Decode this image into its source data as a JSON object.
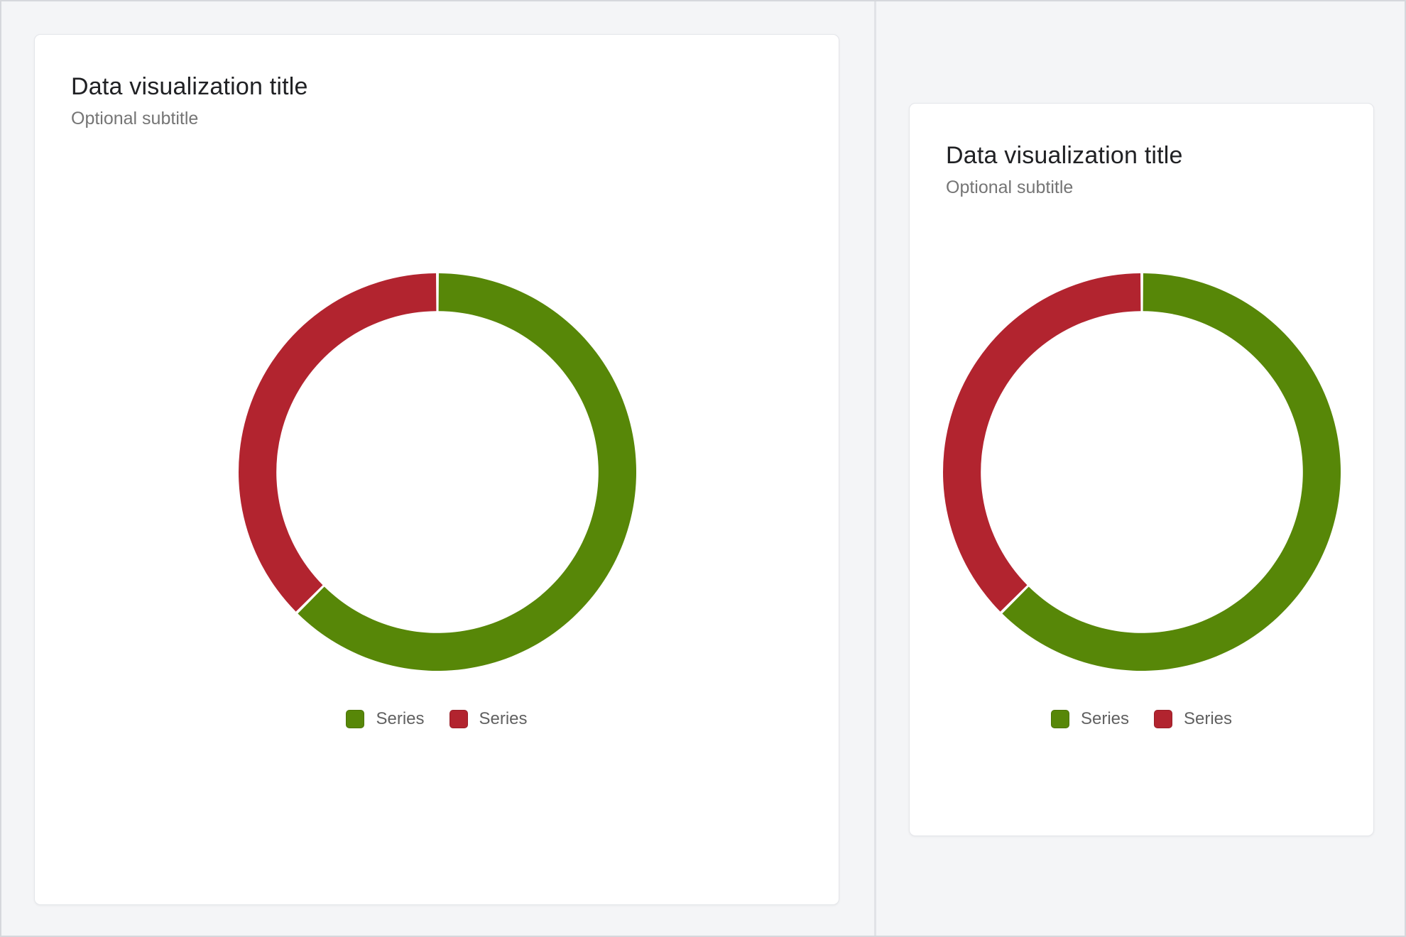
{
  "theme": {
    "background": "#f4f5f7",
    "card_background": "#ffffff",
    "card_border": "#e4e6ea",
    "divider": "#e1e3e7",
    "outer_border": "#d6d8dc",
    "title_color": "#202124",
    "subtitle_color": "#757575",
    "legend_text_color": "#616161",
    "series_green": "#578708",
    "series_red": "#b2242f"
  },
  "cards": [
    {
      "title": "Data visualization title",
      "subtitle": "Optional subtitle"
    },
    {
      "title": "Data visualization title",
      "subtitle": "Optional subtitle"
    }
  ],
  "chart_data": [
    {
      "type": "pie",
      "variant": "donut",
      "title": "Data visualization title",
      "subtitle": "Optional subtitle",
      "series": [
        {
          "name": "Series",
          "value": 62.5,
          "color": "#578708"
        },
        {
          "name": "Series",
          "value": 37.5,
          "color": "#b2242f"
        }
      ],
      "start_angle_deg": 0,
      "direction": "clockwise",
      "inner_radius_ratio": 0.81,
      "pad_angle_deg": 0.8,
      "legend_position": "bottom",
      "data_labels": false
    },
    {
      "type": "pie",
      "variant": "donut",
      "title": "Data visualization title",
      "subtitle": "Optional subtitle",
      "series": [
        {
          "name": "Series",
          "value": 62.5,
          "color": "#578708"
        },
        {
          "name": "Series",
          "value": 37.5,
          "color": "#b2242f"
        }
      ],
      "start_angle_deg": 0,
      "direction": "clockwise",
      "inner_radius_ratio": 0.81,
      "pad_angle_deg": 0.8,
      "legend_position": "bottom",
      "data_labels": false
    }
  ]
}
